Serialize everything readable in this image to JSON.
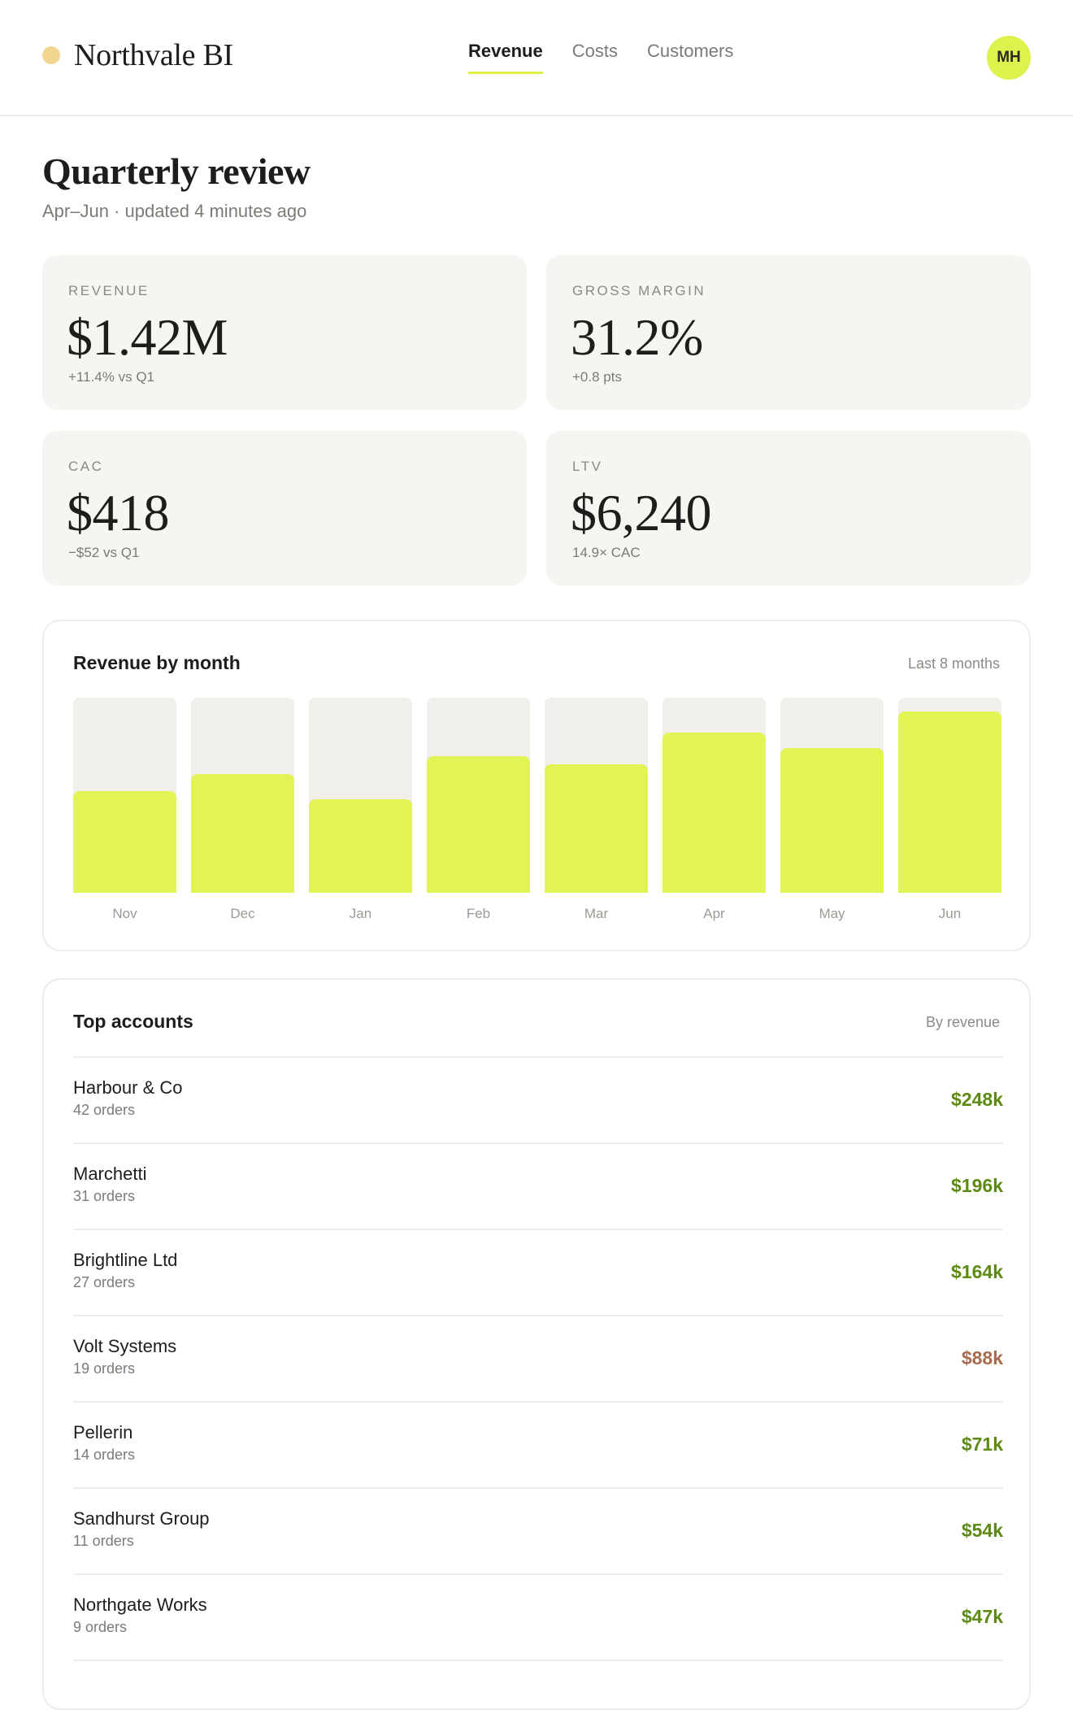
{
  "app": {
    "brand": "Northvale BI",
    "nav": [
      {
        "label": "Revenue",
        "active": true
      },
      {
        "label": "Costs",
        "active": false
      },
      {
        "label": "Customers",
        "active": false
      }
    ],
    "user_initials": "MH"
  },
  "header": {
    "title": "Quarterly review",
    "subtitle": "Apr–Jun · updated 4 minutes ago"
  },
  "kpis": [
    {
      "label": "REVENUE",
      "value": "$1.42M",
      "delta": "+11.4% vs Q1"
    },
    {
      "label": "GROSS MARGIN",
      "value": "31.2%",
      "delta": "+0.8 pts"
    },
    {
      "label": "CAC",
      "value": "$418",
      "delta": "−$52 vs Q1"
    },
    {
      "label": "LTV",
      "value": "$6,240",
      "delta": "14.9× CAC"
    }
  ],
  "revenue_chart": {
    "title": "Revenue by month",
    "range_label": "Last 8 months"
  },
  "chart_data": {
    "type": "bar",
    "title": "Revenue by month",
    "categories": [
      "Nov",
      "Dec",
      "Jan",
      "Feb",
      "Mar",
      "Apr",
      "May",
      "Jun"
    ],
    "values": [
      52,
      61,
      48,
      70,
      66,
      82,
      74,
      93
    ],
    "ylim": [
      0,
      100
    ],
    "grid": false,
    "colors": {
      "bar": "#e2f453",
      "track": "#f0efea"
    }
  },
  "top_accounts": {
    "title": "Top accounts",
    "sort_label": "By revenue",
    "rows": [
      {
        "name": "Harbour & Co",
        "orders": "42 orders",
        "value": "$248k",
        "trend": "up"
      },
      {
        "name": "Marchetti",
        "orders": "31 orders",
        "value": "$196k",
        "trend": "up"
      },
      {
        "name": "Brightline Ltd",
        "orders": "27 orders",
        "value": "$164k",
        "trend": "up"
      },
      {
        "name": "Volt Systems",
        "orders": "19 orders",
        "value": "$88k",
        "trend": "down"
      },
      {
        "name": "Pellerin",
        "orders": "14 orders",
        "value": "$71k",
        "trend": "up"
      },
      {
        "name": "Sandhurst Group",
        "orders": "11 orders",
        "value": "$54k",
        "trend": "up"
      },
      {
        "name": "Northgate Works",
        "orders": "9 orders",
        "value": "$47k",
        "trend": "up"
      }
    ]
  },
  "colors": {
    "accent": "#e2f453",
    "up": "#5c8a13",
    "down": "#a86b4f"
  }
}
